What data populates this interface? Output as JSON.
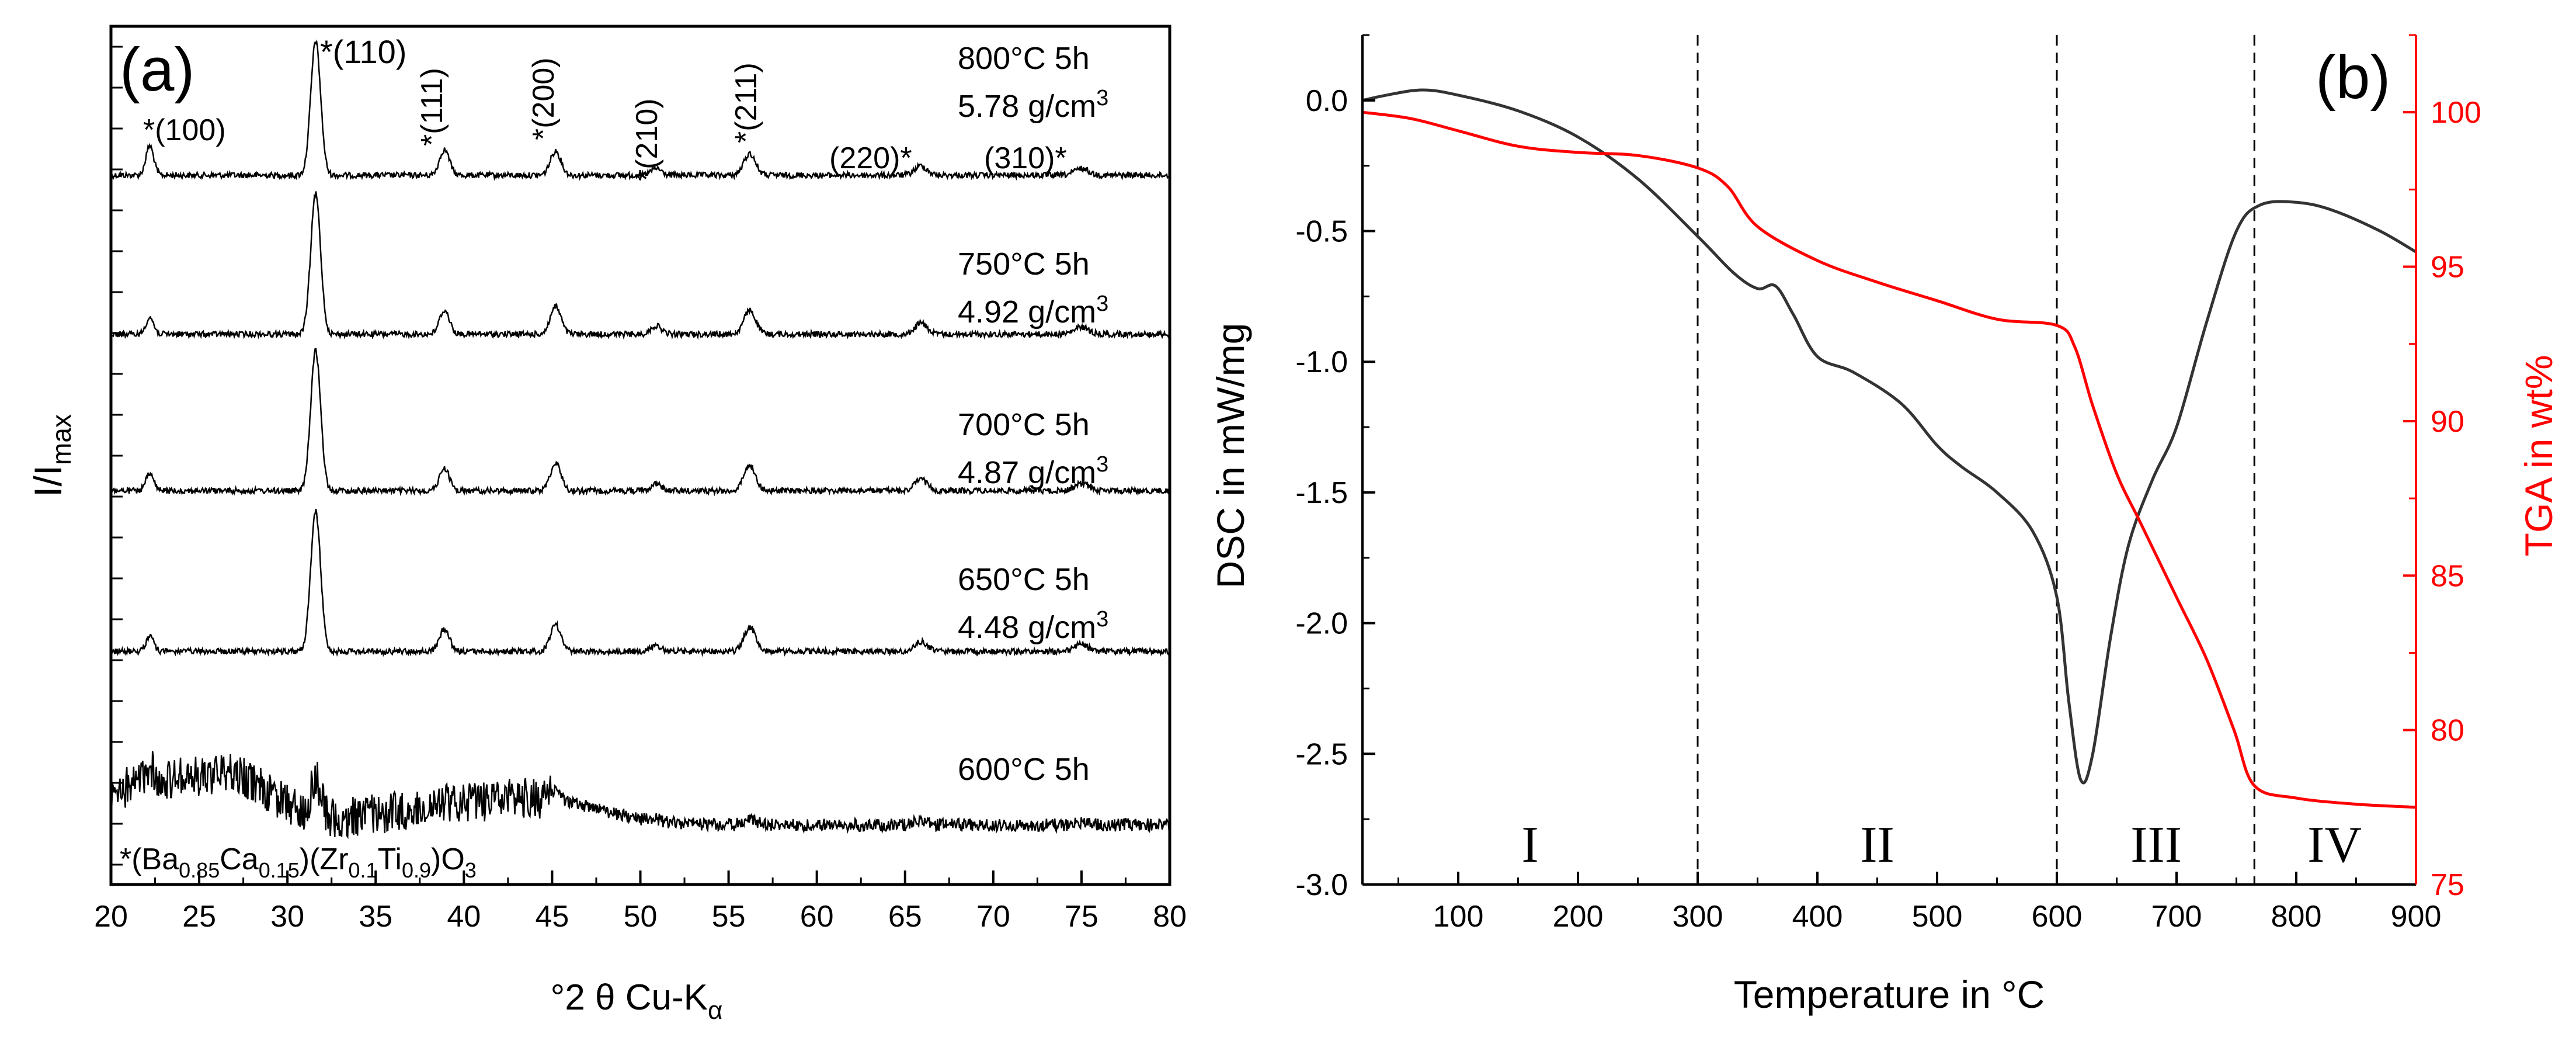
{
  "chart_data": [
    {
      "type": "line",
      "panel_label": "(a)",
      "xlabel_prefix": "°2 θ Cu-K",
      "xlabel_sub": "α",
      "ylabel_main": "I/I",
      "ylabel_sub": "max",
      "xlim": [
        20,
        80
      ],
      "x_ticks": [
        20,
        25,
        30,
        35,
        40,
        45,
        50,
        55,
        60,
        65,
        70,
        75,
        80
      ],
      "peak_positions": [
        22.2,
        31.6,
        38.9,
        45.2,
        50.9,
        56.2,
        65.9,
        75.0
      ],
      "peak_labels": [
        {
          "text": "*(100)",
          "two_theta": 22.2
        },
        {
          "text": "*(110)",
          "two_theta": 31.6
        },
        {
          "text": "*(111)",
          "two_theta": 38.9
        },
        {
          "text": "*(200)",
          "two_theta": 45.2
        },
        {
          "text": "*(210)",
          "two_theta": 50.9
        },
        {
          "text": "*(211)",
          "two_theta": 56.2
        },
        {
          "text": "(220)*",
          "two_theta": 65.9
        },
        {
          "text": "(310)*",
          "two_theta": 75.0
        }
      ],
      "series": [
        {
          "name": "800°C 5h",
          "label": "800°C 5h",
          "density": "5.78 g/cm",
          "density_sup": "3",
          "relative_peak_heights": [
            0.22,
            1.0,
            0.19,
            0.18,
            0.05,
            0.16,
            0.07,
            0.05
          ]
        },
        {
          "name": "750°C 5h",
          "label": "750°C 5h",
          "density": "4.92 g/cm",
          "density_sup": "3",
          "relative_peak_heights": [
            0.12,
            1.0,
            0.17,
            0.2,
            0.06,
            0.17,
            0.08,
            0.05
          ]
        },
        {
          "name": "700°C 5h",
          "label": "700°C 5h",
          "density": "4.87 g/cm",
          "density_sup": "3",
          "relative_peak_heights": [
            0.12,
            1.0,
            0.16,
            0.2,
            0.05,
            0.18,
            0.08,
            0.05
          ]
        },
        {
          "name": "650°C 5h",
          "label": "650°C 5h",
          "density": "4.48 g/cm",
          "density_sup": "3",
          "relative_peak_heights": [
            0.11,
            1.0,
            0.16,
            0.19,
            0.04,
            0.17,
            0.07,
            0.05
          ]
        },
        {
          "name": "600°C 5h",
          "label": "600°C 5h",
          "density": "",
          "density_sup": "",
          "relative_peak_heights": [
            0.2,
            0.55,
            0.08,
            0.12,
            0.03,
            0.09,
            0.06,
            0.04
          ]
        }
      ],
      "footnote": {
        "a": "*(Ba",
        "b": "0.85",
        "c": "Ca",
        "d": "0.15",
        "e": ")(Zr",
        "f": "0.1",
        "g": "Ti",
        "h": "0.9",
        "i": ")O",
        "j": "3"
      }
    },
    {
      "type": "line",
      "panel_label": "(b)",
      "xlabel": "Temperature in °C",
      "ylabel_left": "DSC in mW/mg",
      "ylabel_right": "TGA in wt%",
      "xlim": [
        20,
        900
      ],
      "ylim_left": [
        -3.0,
        0.25
      ],
      "ylim_right": [
        75,
        102.5
      ],
      "x_ticks": [
        100,
        200,
        300,
        400,
        500,
        600,
        700,
        800,
        900
      ],
      "y_ticks_left": [
        "0.0",
        "-0.5",
        "-1.0",
        "-1.5",
        "-2.0",
        "-2.5",
        "-3.0"
      ],
      "y_ticks_right": [
        100,
        95,
        90,
        85,
        80,
        75
      ],
      "colors": {
        "dsc": "#333333",
        "tga": "#ff0000",
        "boundary": "#000000"
      },
      "boundaries": [
        300,
        600,
        765
      ],
      "regions": [
        {
          "label": "I",
          "center": 160
        },
        {
          "label": "II",
          "center": 450
        },
        {
          "label": "III",
          "center": 683
        },
        {
          "label": "IV",
          "center": 832
        }
      ],
      "series": [
        {
          "name": "DSC",
          "axis": "left",
          "points": [
            [
              20,
              0.0
            ],
            [
              40,
              0.02
            ],
            [
              70,
              0.04
            ],
            [
              100,
              0.02
            ],
            [
              150,
              -0.04
            ],
            [
              200,
              -0.14
            ],
            [
              250,
              -0.3
            ],
            [
              300,
              -0.52
            ],
            [
              330,
              -0.66
            ],
            [
              350,
              -0.72
            ],
            [
              365,
              -0.71
            ],
            [
              380,
              -0.82
            ],
            [
              400,
              -0.98
            ],
            [
              430,
              -1.04
            ],
            [
              470,
              -1.16
            ],
            [
              500,
              -1.32
            ],
            [
              520,
              -1.4
            ],
            [
              550,
              -1.5
            ],
            [
              580,
              -1.65
            ],
            [
              600,
              -1.9
            ],
            [
              610,
              -2.3
            ],
            [
              620,
              -2.6
            ],
            [
              630,
              -2.5
            ],
            [
              645,
              -2.05
            ],
            [
              660,
              -1.7
            ],
            [
              680,
              -1.45
            ],
            [
              700,
              -1.25
            ],
            [
              725,
              -0.85
            ],
            [
              750,
              -0.5
            ],
            [
              770,
              -0.4
            ],
            [
              800,
              -0.39
            ],
            [
              830,
              -0.42
            ],
            [
              870,
              -0.5
            ],
            [
              900,
              -0.58
            ]
          ]
        },
        {
          "name": "TGA",
          "axis": "right",
          "points": [
            [
              20,
              100.0
            ],
            [
              60,
              99.8
            ],
            [
              100,
              99.4
            ],
            [
              150,
              98.9
            ],
            [
              200,
              98.7
            ],
            [
              250,
              98.6
            ],
            [
              300,
              98.2
            ],
            [
              325,
              97.6
            ],
            [
              350,
              96.3
            ],
            [
              400,
              95.2
            ],
            [
              450,
              94.5
            ],
            [
              500,
              93.9
            ],
            [
              550,
              93.3
            ],
            [
              600,
              93.1
            ],
            [
              615,
              92.4
            ],
            [
              630,
              90.5
            ],
            [
              650,
              88.3
            ],
            [
              670,
              86.7
            ],
            [
              700,
              84.3
            ],
            [
              725,
              82.3
            ],
            [
              748,
              80.0
            ],
            [
              765,
              78.2
            ],
            [
              800,
              77.8
            ],
            [
              850,
              77.6
            ],
            [
              900,
              77.5
            ]
          ]
        }
      ]
    }
  ]
}
